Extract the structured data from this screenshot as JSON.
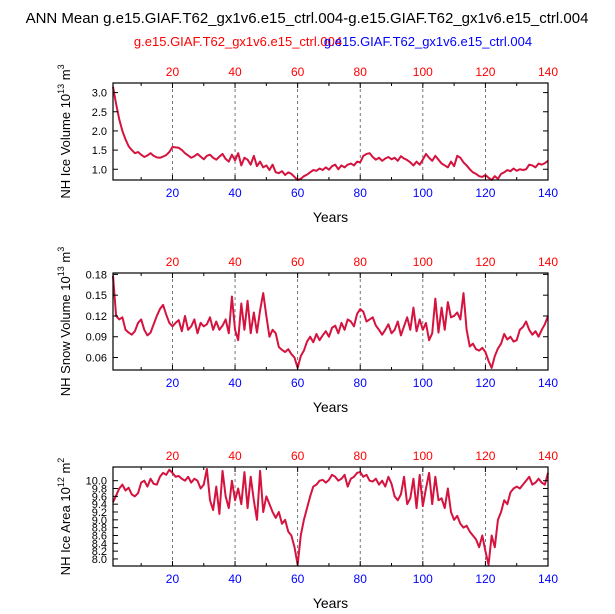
{
  "title": "ANN Mean g.e15.GIAF.T62_gx1v6.e15_ctrl.004-g.e15.GIAF.T62_gx1v6.e15_ctrl.004",
  "legend": {
    "case1": "g.e15.GIAF.T62_gx1v6.e15_ctrl.004",
    "case2": "g.e15.GIAF.T62_gx1v6.e15_ctrl.004"
  },
  "colors": {
    "case1": "#ff0000",
    "case2": "#0000ff",
    "line": "#d5133f",
    "axis": "#000000",
    "grid": "#555555"
  },
  "chart_data": [
    {
      "type": "line",
      "ylabel": "NH Ice Volume 10^13 m^3",
      "ylabel_base": "NH Ice Volume 10",
      "ylabel_exp": "13",
      "ylabel_unit": " m",
      "ylabel_unit_exp": "3",
      "xlabel": "Years",
      "xlim": [
        1,
        140
      ],
      "ylim": [
        0.72,
        3.25
      ],
      "yticks": [
        "1.0",
        "1.5",
        "2.0",
        "2.5",
        "3.0"
      ],
      "ytick_values": [
        1.0,
        1.5,
        2.0,
        2.5,
        3.0
      ],
      "xticks": [
        "20",
        "40",
        "60",
        "80",
        "100",
        "120",
        "140"
      ],
      "xtick_values": [
        20,
        40,
        60,
        80,
        100,
        120,
        140
      ],
      "grid_x": [
        20,
        40,
        60,
        80,
        100,
        120
      ],
      "values": [
        3.15,
        2.7,
        2.3,
        2.0,
        1.78,
        1.6,
        1.5,
        1.42,
        1.45,
        1.38,
        1.32,
        1.36,
        1.42,
        1.35,
        1.31,
        1.3,
        1.33,
        1.37,
        1.45,
        1.58,
        1.57,
        1.56,
        1.5,
        1.42,
        1.36,
        1.3,
        1.34,
        1.4,
        1.33,
        1.26,
        1.35,
        1.38,
        1.3,
        1.25,
        1.33,
        1.4,
        1.27,
        1.2,
        1.38,
        1.23,
        1.42,
        1.1,
        1.3,
        1.25,
        1.12,
        1.35,
        1.08,
        1.2,
        1.05,
        1.1,
        0.98,
        1.12,
        0.92,
        0.9,
        0.95,
        0.85,
        0.92,
        0.88,
        0.8,
        0.72,
        0.75,
        0.82,
        0.86,
        0.92,
        0.98,
        0.96,
        1.02,
        0.98,
        1.05,
        0.99,
        1.08,
        1.12,
        1.0,
        1.1,
        1.05,
        1.12,
        1.15,
        1.1,
        1.2,
        1.18,
        1.35,
        1.4,
        1.42,
        1.32,
        1.25,
        1.3,
        1.22,
        1.28,
        1.32,
        1.26,
        1.3,
        1.22,
        1.34,
        1.28,
        1.24,
        1.18,
        1.1,
        1.2,
        1.12,
        1.25,
        1.4,
        1.3,
        1.22,
        1.35,
        1.25,
        1.15,
        1.1,
        1.05,
        1.2,
        1.08,
        1.35,
        1.3,
        1.18,
        1.1,
        1.0,
        0.92,
        0.88,
        0.82,
        0.8,
        0.85,
        0.78,
        0.72,
        0.82,
        0.75,
        0.88,
        0.92,
        0.98,
        0.95,
        1.02,
        0.96,
        1.0,
        0.98,
        1.0,
        1.12,
        1.1,
        1.05,
        1.15,
        1.12,
        1.16,
        1.22
      ]
    },
    {
      "type": "line",
      "ylabel": "NH Snow Volume 10^13 m^3",
      "ylabel_base": "NH Snow Volume 10",
      "ylabel_exp": "13",
      "ylabel_unit": " m",
      "ylabel_unit_exp": "3",
      "xlabel": "Years",
      "xlim": [
        1,
        140
      ],
      "ylim": [
        0.042,
        0.182
      ],
      "yticks": [
        "0.06",
        "0.09",
        "0.12",
        "0.15",
        "0.18"
      ],
      "ytick_values": [
        0.06,
        0.09,
        0.12,
        0.15,
        0.18
      ],
      "xticks": [
        "20",
        "40",
        "60",
        "80",
        "100",
        "120",
        "140"
      ],
      "xtick_values": [
        20,
        40,
        60,
        80,
        100,
        120,
        140
      ],
      "grid_x": [
        20,
        40,
        60,
        80,
        100,
        120
      ],
      "values": [
        0.178,
        0.12,
        0.115,
        0.118,
        0.1,
        0.096,
        0.093,
        0.098,
        0.11,
        0.115,
        0.1,
        0.092,
        0.096,
        0.108,
        0.12,
        0.13,
        0.136,
        0.122,
        0.11,
        0.105,
        0.11,
        0.114,
        0.098,
        0.12,
        0.1,
        0.105,
        0.115,
        0.095,
        0.11,
        0.105,
        0.108,
        0.118,
        0.1,
        0.112,
        0.1,
        0.106,
        0.115,
        0.095,
        0.148,
        0.1,
        0.085,
        0.138,
        0.1,
        0.142,
        0.095,
        0.125,
        0.096,
        0.128,
        0.153,
        0.12,
        0.09,
        0.1,
        0.095,
        0.075,
        0.071,
        0.068,
        0.072,
        0.065,
        0.06,
        0.045,
        0.062,
        0.07,
        0.083,
        0.09,
        0.082,
        0.094,
        0.085,
        0.092,
        0.098,
        0.09,
        0.103,
        0.106,
        0.095,
        0.11,
        0.1,
        0.115,
        0.112,
        0.105,
        0.123,
        0.13,
        0.126,
        0.112,
        0.115,
        0.118,
        0.106,
        0.1,
        0.093,
        0.1,
        0.108,
        0.095,
        0.1,
        0.112,
        0.092,
        0.105,
        0.118,
        0.1,
        0.132,
        0.098,
        0.115,
        0.1,
        0.11,
        0.085,
        0.095,
        0.145,
        0.096,
        0.132,
        0.1,
        0.14,
        0.118,
        0.12,
        0.125,
        0.115,
        0.153,
        0.1,
        0.076,
        0.08,
        0.072,
        0.07,
        0.074,
        0.068,
        0.055,
        0.045,
        0.062,
        0.073,
        0.08,
        0.094,
        0.086,
        0.09,
        0.083,
        0.085,
        0.1,
        0.104,
        0.112,
        0.1,
        0.093,
        0.098,
        0.09,
        0.1,
        0.108,
        0.12
      ]
    },
    {
      "type": "line",
      "ylabel": "NH Ice Area 10^12 m^2",
      "ylabel_base": "NH Ice Area 10",
      "ylabel_exp": "12",
      "ylabel_unit": " m",
      "ylabel_unit_exp": "2",
      "xlabel": "Years",
      "xlim": [
        1,
        140
      ],
      "ylim": [
        7.82,
        10.35
      ],
      "yticks": [
        "8.0",
        "8.2",
        "8.4",
        "8.6",
        "8.8",
        "9.0",
        "9.2",
        "9.4",
        "9.6",
        "9.8",
        "10.0"
      ],
      "ytick_values": [
        8.0,
        8.2,
        8.4,
        8.6,
        8.8,
        9.0,
        9.2,
        9.4,
        9.6,
        9.8,
        10.0
      ],
      "xticks": [
        "20",
        "40",
        "60",
        "80",
        "100",
        "120",
        "140"
      ],
      "xtick_values": [
        20,
        40,
        60,
        80,
        100,
        120,
        140
      ],
      "grid_x": [
        20,
        40,
        60,
        80,
        100,
        120
      ],
      "values": [
        9.45,
        9.62,
        9.8,
        9.9,
        9.75,
        9.82,
        9.65,
        9.6,
        9.68,
        9.95,
        10.0,
        9.85,
        10.05,
        9.92,
        9.9,
        10.1,
        10.2,
        10.15,
        10.28,
        10.2,
        10.1,
        10.12,
        10.05,
        10.0,
        10.1,
        9.95,
        10.05,
        10.0,
        9.8,
        9.9,
        10.3,
        9.5,
        9.25,
        9.85,
        9.15,
        10.25,
        9.6,
        9.3,
        10.0,
        9.5,
        9.8,
        9.4,
        10.22,
        9.3,
        10.1,
        9.5,
        9.0,
        10.25,
        9.2,
        9.6,
        9.4,
        9.2,
        9.05,
        9.2,
        8.9,
        9.0,
        8.7,
        8.6,
        8.3,
        7.85,
        8.6,
        9.0,
        9.3,
        9.6,
        9.85,
        9.9,
        10.0,
        10.02,
        9.95,
        10.02,
        10.15,
        10.1,
        10.0,
        10.05,
        10.15,
        9.85,
        10.05,
        10.1,
        10.2,
        10.22,
        10.1,
        10.15,
        10.0,
        9.98,
        10.05,
        9.9,
        10.0,
        9.85,
        10.1,
        9.92,
        9.6,
        9.5,
        9.65,
        10.1,
        9.4,
        9.55,
        10.05,
        9.3,
        10.15,
        9.35,
        9.8,
        10.2,
        9.4,
        10.1,
        9.5,
        9.55,
        9.3,
        9.8,
        9.2,
        9.0,
        9.1,
        8.9,
        8.8,
        8.85,
        8.7,
        8.6,
        8.5,
        8.3,
        8.6,
        8.2,
        7.85,
        8.6,
        8.3,
        9.0,
        9.2,
        9.5,
        9.4,
        9.7,
        9.8,
        9.85,
        9.8,
        9.9,
        10.0,
        10.1,
        9.9,
        9.95,
        10.05,
        9.95,
        9.9,
        10.2
      ]
    }
  ]
}
